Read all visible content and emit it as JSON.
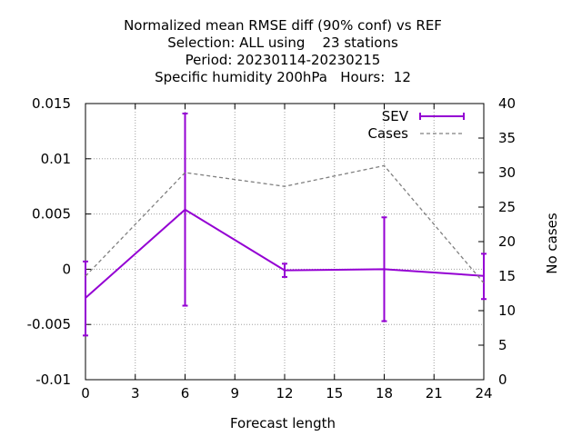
{
  "chart_data": {
    "type": "line",
    "title": [
      "Normalized mean RMSE diff (90% conf) vs REF",
      "Selection: ALL using    23 stations",
      "Period: 20230114-20230215",
      "Specific humidity 200hPa   Hours:  12"
    ],
    "xlabel": "Forecast length",
    "ylabel": "",
    "y2label": "No cases",
    "xlim": [
      0,
      24
    ],
    "ylim": [
      -0.01,
      0.015
    ],
    "y2lim": [
      0,
      40
    ],
    "x_ticks": [
      "0",
      "3",
      "6",
      "9",
      "12",
      "15",
      "18",
      "21",
      "24"
    ],
    "y_ticks": [
      "-0.01",
      "-0.005",
      "0",
      "0.005",
      "0.01",
      "0.015"
    ],
    "y2_ticks": [
      "0",
      "5",
      "10",
      "15",
      "20",
      "25",
      "30",
      "35",
      "40"
    ],
    "grid": true,
    "legend_position": "top-right",
    "series": [
      {
        "name": "SEV",
        "axis": "y",
        "color": "#9400d3",
        "style": "solid-errorbars",
        "x": [
          0,
          6,
          12,
          18,
          24
        ],
        "values": [
          -0.0026,
          0.0054,
          -0.0001,
          0.0,
          -0.0006
        ],
        "err_low": [
          -0.006,
          -0.0033,
          -0.0007,
          -0.0047,
          -0.0027
        ],
        "err_high": [
          0.0007,
          0.0141,
          0.0005,
          0.0047,
          0.0014
        ]
      },
      {
        "name": "Cases",
        "axis": "y2",
        "color": "#808080",
        "style": "dashed",
        "x": [
          0,
          6,
          12,
          18,
          24
        ],
        "values": [
          15,
          30,
          28,
          31,
          14
        ]
      }
    ]
  }
}
